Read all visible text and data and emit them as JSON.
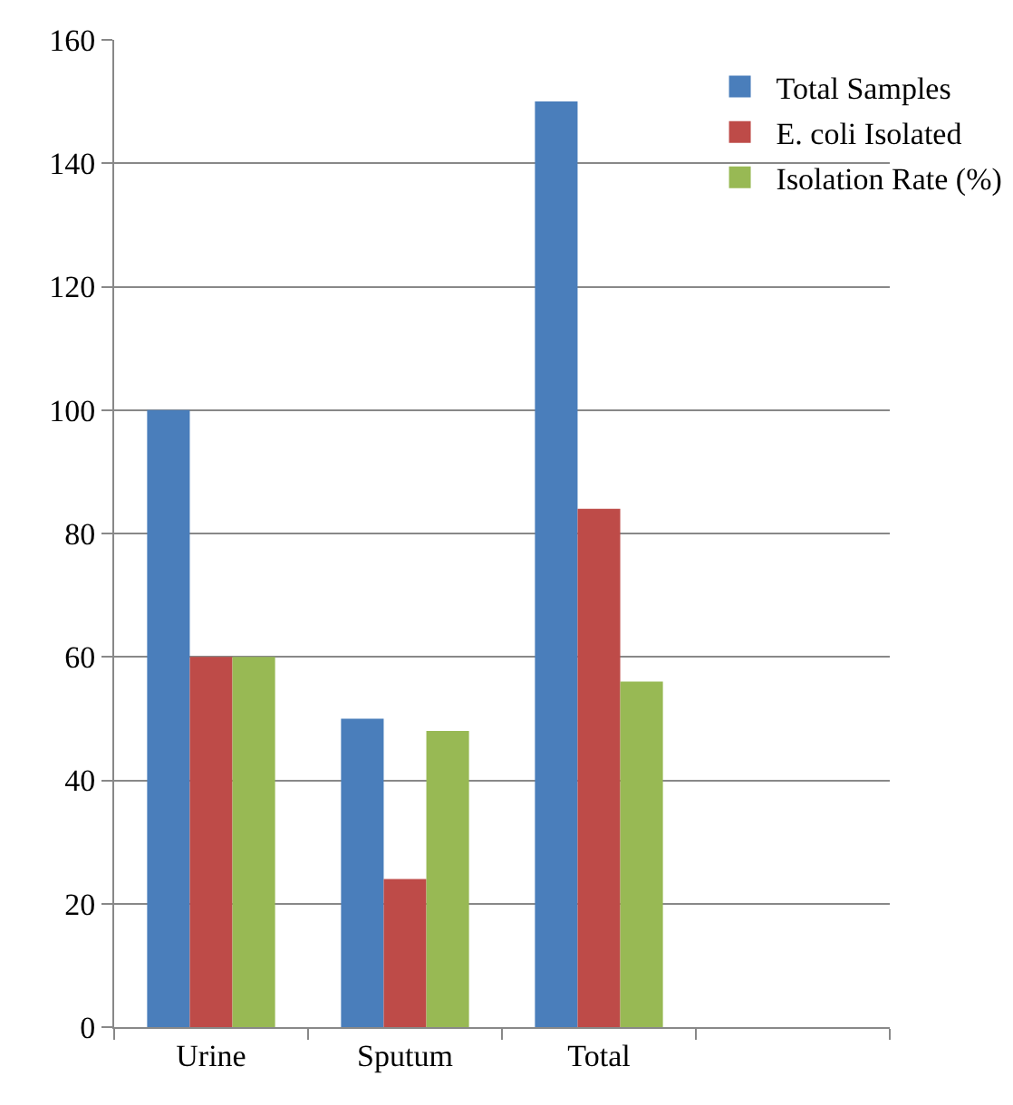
{
  "chart_data": {
    "type": "bar",
    "categories": [
      "Urine",
      "Sputum",
      "Total",
      null
    ],
    "series": [
      {
        "name": "Total Samples",
        "color": "#4a7ebb",
        "values": [
          100,
          50,
          150,
          null
        ]
      },
      {
        "name": "E. coli Isolated",
        "color": "#be4b48",
        "values": [
          60,
          24,
          84,
          null
        ]
      },
      {
        "name": "Isolation Rate (%)",
        "color": "#98b954",
        "values": [
          60,
          48,
          56,
          null
        ]
      }
    ],
    "ylim": [
      0,
      160
    ],
    "yticks": [
      0,
      20,
      40,
      60,
      80,
      100,
      120,
      140,
      160
    ],
    "grid": "y",
    "legend": "top right"
  }
}
